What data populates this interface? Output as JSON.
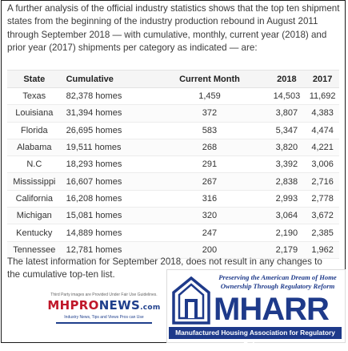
{
  "intro": "A further analysis of the official industry statistics shows that the top ten shipment states from the beginning of the industry production rebound in August 2011 through September 2018 — with cumulative, monthly, current year (2018) and prior year (2017) shipments per category as indicated — are:",
  "table": {
    "headers": [
      "State",
      "Cumulative",
      "Current Month",
      "2018",
      "2017"
    ],
    "rows": [
      [
        "Texas",
        "82,378 homes",
        "1,459",
        "14,503",
        "11,692"
      ],
      [
        "Louisiana",
        "31,394 homes",
        "372",
        "3,807",
        "4,383"
      ],
      [
        "Florida",
        "26,695 homes",
        "583",
        "5,347",
        "4,474"
      ],
      [
        "Alabama",
        "19,511 homes",
        "268",
        "3,820",
        "4,221"
      ],
      [
        "N.C",
        "18,293 homes",
        "291",
        "3,392",
        "3,006"
      ],
      [
        "Mississippi",
        "16,607 homes",
        "267",
        "2,838",
        "2,716"
      ],
      [
        "California",
        "16,208 homes",
        "316",
        "2,993",
        "2,778"
      ],
      [
        "Michigan",
        "15,081 homes",
        "320",
        "3,064",
        "3,672"
      ],
      [
        "Kentucky",
        "14,889 homes",
        "247",
        "2,190",
        "2,385"
      ],
      [
        "Tennessee",
        "12,781 homes",
        "200",
        "2,179",
        "1,962"
      ]
    ]
  },
  "note": "The latest information for September 2018, does not result in any changes to the cumulative top-ten list.",
  "mhpronews": {
    "top": "Third Party images are Provided Under Fair Use Guidelines.",
    "logo_red": "MHPRO",
    "logo_blue": "NEWS",
    "logo_suffix": ".com",
    "tagline": "Industry News, Tips and Views Pros can Use"
  },
  "mharr": {
    "tagline": "Preserving the American Dream of Home Ownership Through Regulatory Reform",
    "name": "MHARR",
    "full_name": "Manufactured Housing Association for Regulatory Reform",
    "color": "#1e3a8a"
  }
}
